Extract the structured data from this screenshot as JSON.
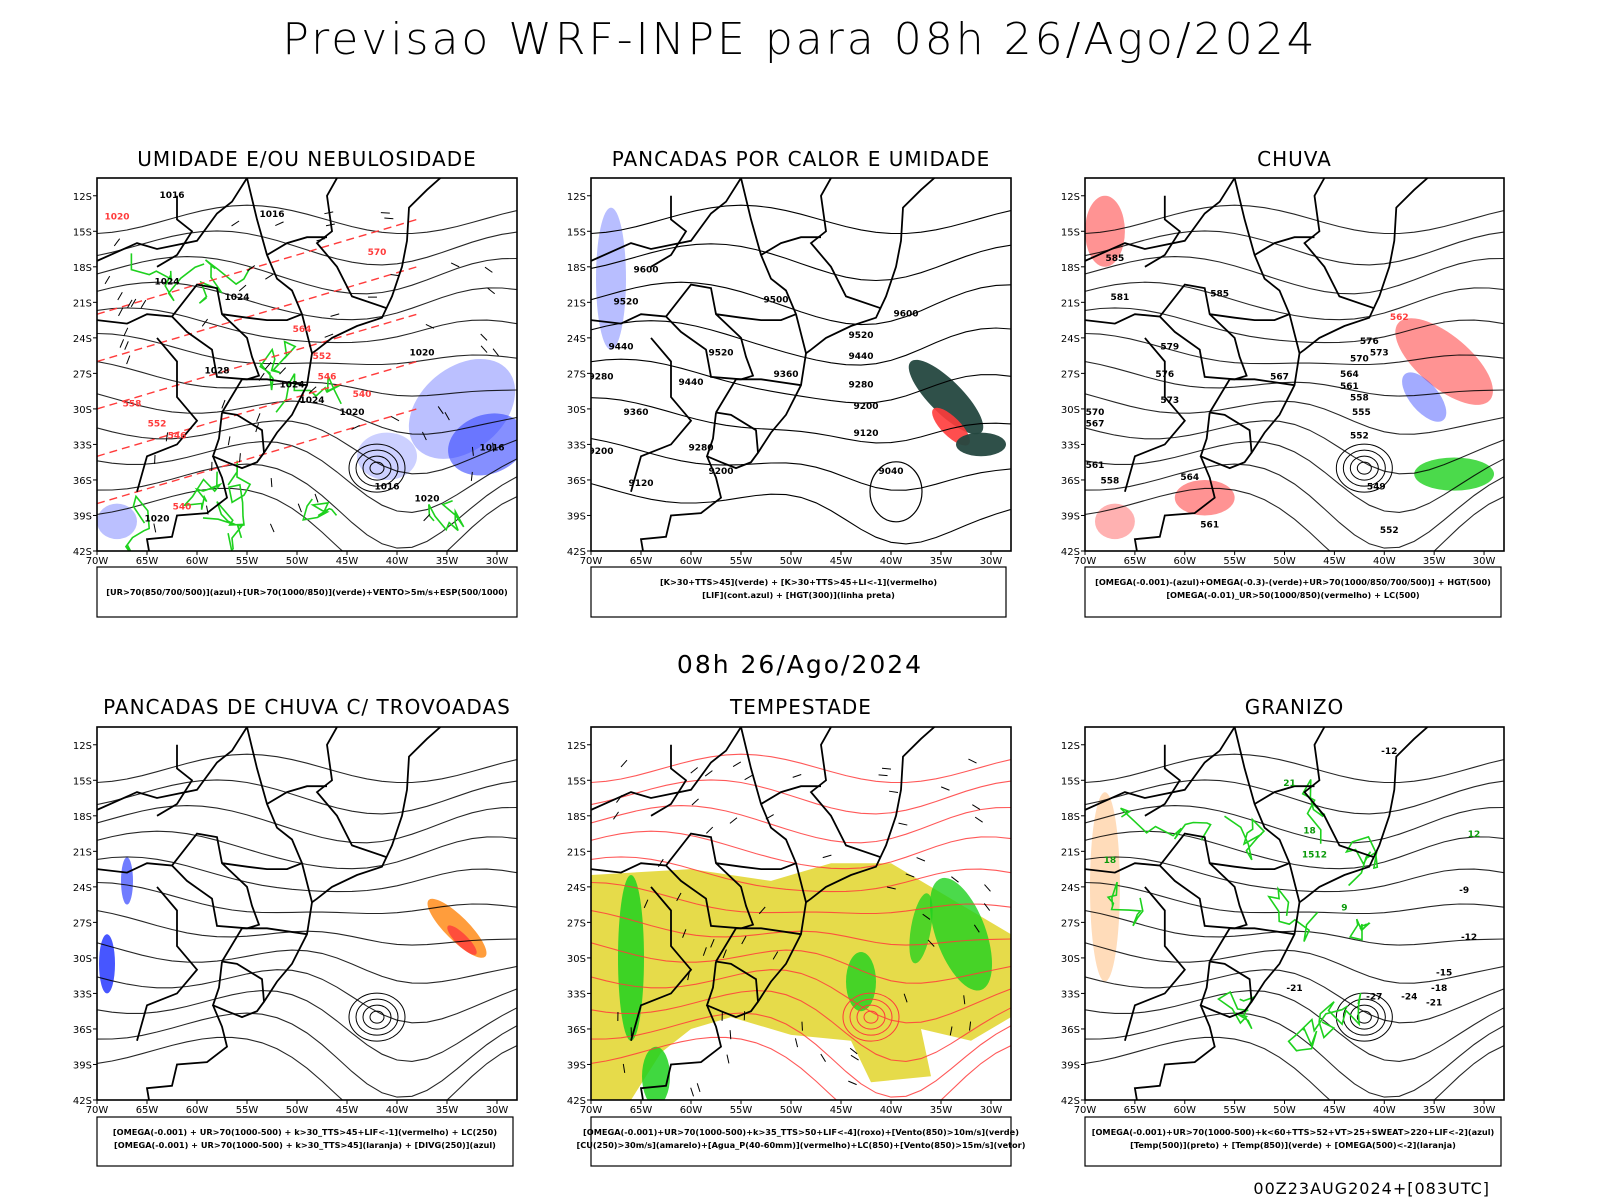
{
  "page": {
    "title": "Previsao WRF-INPE  para 08h 26/Ago/2024",
    "subtitle": "08h 26/Ago/2024",
    "footer": "00Z23AUG2024+[083UTC]"
  },
  "colors": {
    "blue": "#3344ff",
    "green": "#1ed11e",
    "red": "#ff3b3b",
    "orange": "#ff8c1a",
    "yellow": "#e2d52a",
    "darkteal": "#24473f",
    "lavender": "#aab0ff"
  },
  "chart_data": [
    {
      "type": "map",
      "title": "UMIDADE E/OU NEBULOSIDADE",
      "legend": [
        "[UR>70(850/700/500)](azul)+[UR>70(1000/850)](verde)+VENTO>5m/s+ESP(500/1000)"
      ],
      "xlim": [
        -70,
        -28
      ],
      "ylim": [
        -42,
        -10.5
      ],
      "xticks": [
        "70W",
        "65W",
        "60W",
        "55W",
        "50W",
        "45W",
        "40W",
        "35W",
        "30W"
      ],
      "yticks": [
        "12S",
        "15S",
        "18S",
        "21S",
        "24S",
        "27S",
        "30S",
        "33S",
        "36S",
        "39S",
        "42S"
      ],
      "contour_labels": [
        {
          "text": "1016",
          "lon": -62.5,
          "lat": -12.2,
          "color": "black"
        },
        {
          "text": "1016",
          "lon": -52.5,
          "lat": -13.8,
          "color": "black"
        },
        {
          "text": "1020",
          "lon": -68,
          "lat": -14,
          "color": "red"
        },
        {
          "text": "1024",
          "lon": -63,
          "lat": -19.5,
          "color": "black"
        },
        {
          "text": "1024",
          "lon": -56,
          "lat": -20.8,
          "color": "black"
        },
        {
          "text": "1028",
          "lon": -58,
          "lat": -27,
          "color": "black"
        },
        {
          "text": "1024",
          "lon": -50.5,
          "lat": -28.2,
          "color": "black"
        },
        {
          "text": "1024",
          "lon": -48.5,
          "lat": -29.5,
          "color": "black"
        },
        {
          "text": "1020",
          "lon": -44.5,
          "lat": -30.5,
          "color": "black"
        },
        {
          "text": "1016",
          "lon": -41,
          "lat": -36.8,
          "color": "black"
        },
        {
          "text": "1020",
          "lon": -37,
          "lat": -37.8,
          "color": "black"
        },
        {
          "text": "1020",
          "lon": -64,
          "lat": -39.5,
          "color": "black"
        },
        {
          "text": "1016",
          "lon": -30.5,
          "lat": -33.5,
          "color": "black"
        },
        {
          "text": "1020",
          "lon": -37.5,
          "lat": -25.5,
          "color": "black"
        },
        {
          "text": "570",
          "lon": -42,
          "lat": -17,
          "color": "red"
        },
        {
          "text": "564",
          "lon": -49.5,
          "lat": -23.5,
          "color": "red"
        },
        {
          "text": "552",
          "lon": -47.5,
          "lat": -25.8,
          "color": "red"
        },
        {
          "text": "546",
          "lon": -47,
          "lat": -27.5,
          "color": "red"
        },
        {
          "text": "540",
          "lon": -43.5,
          "lat": -29,
          "color": "red"
        },
        {
          "text": "546",
          "lon": -62,
          "lat": -32.5,
          "color": "red"
        },
        {
          "text": "540",
          "lon": -61.5,
          "lat": -38.5,
          "color": "red"
        },
        {
          "text": "558",
          "lon": -66.5,
          "lat": -29.8,
          "color": "red"
        },
        {
          "text": "552",
          "lon": -64,
          "lat": -31.5,
          "color": "red"
        }
      ]
    },
    {
      "type": "map",
      "title": "PANCADAS POR CALOR E UMIDADE",
      "legend": [
        "[K>30+TTS>45](verde) + [K>30+TTS>45+LI<-1](vermelho)",
        "[LIF](cont.azul) + [HGT(300)](linha preta)"
      ],
      "xlim": [
        -70,
        -28
      ],
      "ylim": [
        -42,
        -10.5
      ],
      "xticks": [
        "70W",
        "65W",
        "60W",
        "55W",
        "50W",
        "45W",
        "40W",
        "35W",
        "30W"
      ],
      "yticks": [
        "12S",
        "15S",
        "18S",
        "21S",
        "24S",
        "27S",
        "30S",
        "33S",
        "36S",
        "39S",
        "42S"
      ],
      "contour_labels": [
        {
          "text": "9600",
          "lon": -64.5,
          "lat": -18.5,
          "color": "black"
        },
        {
          "text": "9600",
          "lon": -38.5,
          "lat": -22.2,
          "color": "black"
        },
        {
          "text": "9520",
          "lon": -66.5,
          "lat": -21.2,
          "color": "black"
        },
        {
          "text": "9520",
          "lon": -57,
          "lat": -25.5,
          "color": "black"
        },
        {
          "text": "9520",
          "lon": -43,
          "lat": -24,
          "color": "black"
        },
        {
          "text": "9500",
          "lon": -51.5,
          "lat": -21,
          "color": "black"
        },
        {
          "text": "9440",
          "lon": -67,
          "lat": -25,
          "color": "black"
        },
        {
          "text": "9440",
          "lon": -60,
          "lat": -28,
          "color": "black"
        },
        {
          "text": "9440",
          "lon": -43,
          "lat": -25.8,
          "color": "black"
        },
        {
          "text": "9360",
          "lon": -50.5,
          "lat": -27.3,
          "color": "black"
        },
        {
          "text": "9360",
          "lon": -65.5,
          "lat": -30.5,
          "color": "black"
        },
        {
          "text": "9280",
          "lon": -69,
          "lat": -27.5,
          "color": "black"
        },
        {
          "text": "9280",
          "lon": -43,
          "lat": -28.2,
          "color": "black"
        },
        {
          "text": "9280",
          "lon": -59,
          "lat": -33.5,
          "color": "black"
        },
        {
          "text": "9200",
          "lon": -42.5,
          "lat": -30,
          "color": "black"
        },
        {
          "text": "9200",
          "lon": -57,
          "lat": -35.5,
          "color": "black"
        },
        {
          "text": "9200",
          "lon": -69,
          "lat": -33.8,
          "color": "black"
        },
        {
          "text": "9120",
          "lon": -42.5,
          "lat": -32.3,
          "color": "black"
        },
        {
          "text": "9120",
          "lon": -65,
          "lat": -36.5,
          "color": "black"
        },
        {
          "text": "9040",
          "lon": -40,
          "lat": -35.5,
          "color": "black"
        }
      ]
    },
    {
      "type": "map",
      "title": "CHUVA",
      "legend": [
        "[OMEGA(-0.001)-(azul)+OMEGA(-0.3)-(verde)+UR>70(1000/850/700/500)] + HGT(500)",
        "[OMEGA(-0.01)_UR>50(1000/850)(vermelho) + LC(500)"
      ],
      "xlim": [
        -70,
        -28
      ],
      "ylim": [
        -42,
        -10.5
      ],
      "xticks": [
        "70W",
        "65W",
        "60W",
        "55W",
        "50W",
        "45W",
        "40W",
        "35W",
        "30W"
      ],
      "yticks": [
        "12S",
        "15S",
        "18S",
        "21S",
        "24S",
        "27S",
        "30S",
        "33S",
        "36S",
        "39S",
        "42S"
      ],
      "contour_labels": [
        {
          "text": "585",
          "lon": -67,
          "lat": -17.5,
          "color": "black"
        },
        {
          "text": "585",
          "lon": -56.5,
          "lat": -20.5,
          "color": "black"
        },
        {
          "text": "581",
          "lon": -66.5,
          "lat": -20.8,
          "color": "black"
        },
        {
          "text": "579",
          "lon": -61.5,
          "lat": -25,
          "color": "black"
        },
        {
          "text": "576",
          "lon": -62,
          "lat": -27.3,
          "color": "black"
        },
        {
          "text": "573",
          "lon": -61.5,
          "lat": -29.5,
          "color": "black"
        },
        {
          "text": "570",
          "lon": -69,
          "lat": -30.5,
          "color": "black"
        },
        {
          "text": "567",
          "lon": -69,
          "lat": -31.5,
          "color": "black"
        },
        {
          "text": "567",
          "lon": -50.5,
          "lat": -27.5,
          "color": "black"
        },
        {
          "text": "561",
          "lon": -69,
          "lat": -35,
          "color": "black"
        },
        {
          "text": "558",
          "lon": -67.5,
          "lat": -36.3,
          "color": "black"
        },
        {
          "text": "564",
          "lon": -59.5,
          "lat": -36,
          "color": "black"
        },
        {
          "text": "561",
          "lon": -57.5,
          "lat": -40,
          "color": "black"
        },
        {
          "text": "576",
          "lon": -41.5,
          "lat": -24.5,
          "color": "black"
        },
        {
          "text": "573",
          "lon": -40.5,
          "lat": -25.5,
          "color": "black"
        },
        {
          "text": "570",
          "lon": -42.5,
          "lat": -26,
          "color": "black"
        },
        {
          "text": "564",
          "lon": -43.5,
          "lat": -27.3,
          "color": "black"
        },
        {
          "text": "561",
          "lon": -43.5,
          "lat": -28.3,
          "color": "black"
        },
        {
          "text": "558",
          "lon": -42.5,
          "lat": -29.3,
          "color": "black"
        },
        {
          "text": "555",
          "lon": -42.3,
          "lat": -30.5,
          "color": "black"
        },
        {
          "text": "552",
          "lon": -42.5,
          "lat": -32.5,
          "color": "black"
        },
        {
          "text": "549",
          "lon": -40.8,
          "lat": -36.8,
          "color": "black"
        },
        {
          "text": "552",
          "lon": -39.5,
          "lat": -40.5,
          "color": "black"
        },
        {
          "text": "562",
          "lon": -38.5,
          "lat": -22.5,
          "color": "red"
        }
      ]
    },
    {
      "type": "map",
      "title": "PANCADAS DE CHUVA C/ TROVOADAS",
      "legend": [
        "[OMEGA(-0.001) + UR>70(1000-500) + k>30_TTS>45+LIF<-1](vermelho) + LC(250)",
        "[OMEGA(-0.001) + UR>70(1000-500) + k>30_TTS>45](laranja) + [DIVG(250)](azul)"
      ],
      "xlim": [
        -70,
        -28
      ],
      "ylim": [
        -42,
        -10.5
      ],
      "xticks": [
        "70W",
        "65W",
        "60W",
        "55W",
        "50W",
        "45W",
        "40W",
        "35W",
        "30W"
      ],
      "yticks": [
        "12S",
        "15S",
        "18S",
        "21S",
        "24S",
        "27S",
        "30S",
        "33S",
        "36S",
        "39S",
        "42S"
      ],
      "contour_labels": []
    },
    {
      "type": "map",
      "title": "TEMPESTADE",
      "legend": [
        "[OMEGA(-0.001)+UR>70(1000-500)+k>35_TTS>50+LIF<-4](roxo)+[Vento(850)>10m/s](verde)",
        "[CU(250)>30m/s](amarelo)+[Agua_P(40-60mm)](vermelho)+LC(850)+[Vento(850)>15m/s](vetor)"
      ],
      "xlim": [
        -70,
        -28
      ],
      "ylim": [
        -42,
        -10.5
      ],
      "xticks": [
        "70W",
        "65W",
        "60W",
        "55W",
        "50W",
        "45W",
        "40W",
        "35W",
        "30W"
      ],
      "yticks": [
        "12S",
        "15S",
        "18S",
        "21S",
        "24S",
        "27S",
        "30S",
        "33S",
        "36S",
        "39S",
        "42S"
      ],
      "contour_labels": []
    },
    {
      "type": "map",
      "title": "GRANIZO",
      "legend": [
        "[OMEGA(-0.001)+UR>70(1000-500)+k<60+TTS>52+VT>25+SWEAT>220+LIF<-2](azul)",
        "[Temp(500)](preto) + [Temp(850)](verde) + [OMEGA(500)<-2](laranja)"
      ],
      "xlim": [
        -70,
        -28
      ],
      "ylim": [
        -42,
        -10.5
      ],
      "xticks": [
        "70W",
        "65W",
        "60W",
        "55W",
        "50W",
        "45W",
        "40W",
        "35W",
        "30W"
      ],
      "yticks": [
        "12S",
        "15S",
        "18S",
        "21S",
        "24S",
        "27S",
        "30S",
        "33S",
        "36S",
        "39S",
        "42S"
      ],
      "contour_labels": [
        {
          "text": "-12",
          "lon": -39.5,
          "lat": -12.8,
          "color": "black"
        },
        {
          "text": "-9",
          "lon": -32,
          "lat": -24.5,
          "color": "black"
        },
        {
          "text": "-12",
          "lon": -31.5,
          "lat": -28.5,
          "color": "black"
        },
        {
          "text": "-15",
          "lon": -34,
          "lat": -31.5,
          "color": "black"
        },
        {
          "text": "-18",
          "lon": -34.5,
          "lat": -32.8,
          "color": "black"
        },
        {
          "text": "-21",
          "lon": -49,
          "lat": -32.8,
          "color": "black"
        },
        {
          "text": "-21",
          "lon": -35,
          "lat": -34,
          "color": "black"
        },
        {
          "text": "-24",
          "lon": -37.5,
          "lat": -33.5,
          "color": "black"
        },
        {
          "text": "-27",
          "lon": -41,
          "lat": -33.5,
          "color": "black"
        },
        {
          "text": "21",
          "lon": -49.5,
          "lat": -15.5,
          "color": "green"
        },
        {
          "text": "18",
          "lon": -47.5,
          "lat": -19.5,
          "color": "green"
        },
        {
          "text": "1512",
          "lon": -47,
          "lat": -21.5,
          "color": "green"
        },
        {
          "text": "9",
          "lon": -44,
          "lat": -26,
          "color": "green"
        },
        {
          "text": "18",
          "lon": -67.5,
          "lat": -22,
          "color": "green"
        },
        {
          "text": "12",
          "lon": -31,
          "lat": -19.8,
          "color": "green"
        }
      ]
    }
  ]
}
